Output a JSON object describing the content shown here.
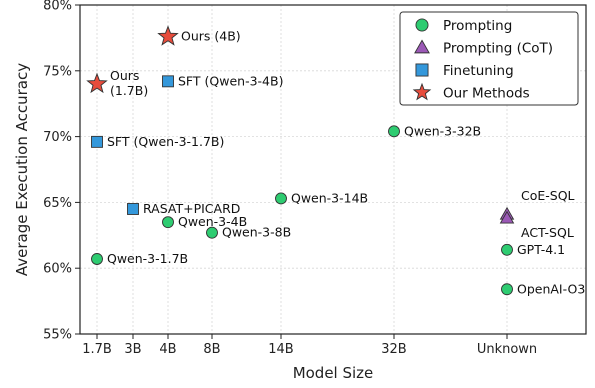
{
  "chart_data": {
    "type": "scatter",
    "xlabel": "Model Size",
    "ylabel": "Average Execution Accuracy",
    "x_categories": [
      "1.7B",
      "3B",
      "4B",
      "8B",
      "14B",
      "32B",
      "Unknown"
    ],
    "x_values": [
      1.7,
      3,
      4,
      8,
      14,
      32,
      null
    ],
    "ylim": [
      55,
      80
    ],
    "y_ticks": [
      55,
      60,
      65,
      70,
      75,
      80
    ],
    "y_tick_format": "%",
    "grid": true,
    "legend_position": "top-right",
    "legend": [
      {
        "label": "Prompting",
        "marker": "circle",
        "color": "#2ecc71"
      },
      {
        "label": "Prompting (CoT)",
        "marker": "triangle",
        "color": "#9b59b6"
      },
      {
        "label": "Finetuning",
        "marker": "square",
        "color": "#3498db"
      },
      {
        "label": "Our Methods",
        "marker": "star",
        "color": "#e74c3c"
      }
    ],
    "series": [
      {
        "name": "Prompting",
        "points": [
          {
            "label": "Qwen-3-1.7B",
            "x": "1.7B",
            "y": 60.7
          },
          {
            "label": "Qwen-3-4B",
            "x": "4B",
            "y": 63.5
          },
          {
            "label": "Qwen-3-8B",
            "x": "8B",
            "y": 62.7
          },
          {
            "label": "Qwen-3-14B",
            "x": "14B",
            "y": 65.3
          },
          {
            "label": "Qwen-3-32B",
            "x": "32B",
            "y": 70.4
          },
          {
            "label": "GPT-4.1",
            "x": "Unknown",
            "y": 61.4
          },
          {
            "label": "OpenAI-O3",
            "x": "Unknown",
            "y": 58.4
          }
        ]
      },
      {
        "name": "Prompting (CoT)",
        "points": [
          {
            "label": "CoE-SQL",
            "x": "Unknown",
            "y": 64.1
          },
          {
            "label": "ACT-SQL",
            "x": "Unknown",
            "y": 63.8
          }
        ]
      },
      {
        "name": "Finetuning",
        "points": [
          {
            "label": "SFT (Qwen-3-4B)",
            "x": "4B",
            "y": 74.2
          },
          {
            "label": "SFT (Qwen-3-1.7B)",
            "x": "1.7B",
            "y": 69.6
          },
          {
            "label": "RASAT+PICARD",
            "x": "3B",
            "y": 64.5
          }
        ]
      },
      {
        "name": "Our Methods",
        "points": [
          {
            "label": "Ours (4B)",
            "x": "4B",
            "y": 77.6
          },
          {
            "label": "Ours\n(1.7B)",
            "x": "1.7B",
            "y": 74.0
          }
        ]
      }
    ]
  }
}
